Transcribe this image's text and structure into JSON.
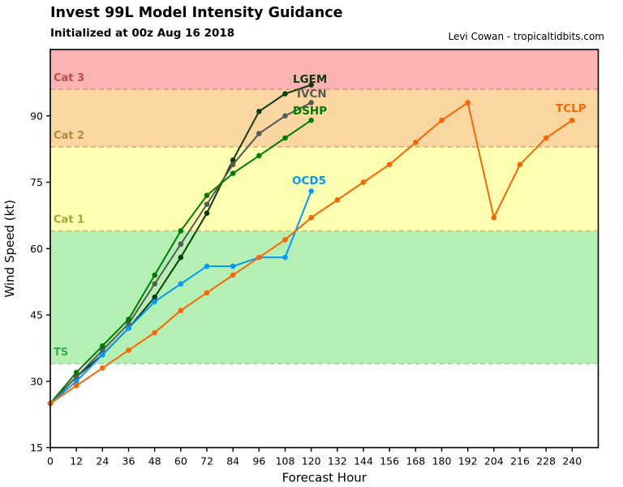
{
  "header": {
    "title": "Invest 99L Model Intensity Guidance",
    "subtitle": "Initialized at 00z Aug 16 2018",
    "credit": "Levi Cowan - tropicaltidbits.com"
  },
  "chart_data": {
    "type": "line",
    "title": "Invest 99L Model Intensity Guidance",
    "subtitle": "Initialized at 00z Aug 16 2018",
    "xlabel": "Forecast Hour",
    "ylabel": "Wind Speed (kt)",
    "xlim": [
      0,
      252
    ],
    "ylim": [
      15,
      105
    ],
    "xticks": [
      0,
      12,
      24,
      36,
      48,
      60,
      72,
      84,
      96,
      108,
      120,
      132,
      144,
      156,
      168,
      180,
      192,
      204,
      216,
      228,
      240
    ],
    "yticks": [
      15,
      30,
      45,
      60,
      75,
      90
    ],
    "grid": false,
    "legend_position": "inline-labels",
    "bands": [
      {
        "label": "",
        "from": 15,
        "to": 34,
        "color": "#ffffff",
        "dash_color": null,
        "label_color": null
      },
      {
        "label": "TS",
        "from": 34,
        "to": 64,
        "color": "#b4f0b4",
        "dash_color": "#8dd98d",
        "label_color": "#3fae47"
      },
      {
        "label": "Cat 1",
        "from": 64,
        "to": 83,
        "color": "#ffffb2",
        "dash_color": "#c6c167",
        "label_color": "#a8a639"
      },
      {
        "label": "Cat 2",
        "from": 83,
        "to": 96,
        "color": "#fad7a0",
        "dash_color": "#d2ab66",
        "label_color": "#b08d3f"
      },
      {
        "label": "Cat 3",
        "from": 96,
        "to": 105,
        "color": "#fbb3b3",
        "dash_color": "#e58f8f",
        "label_color": "#c14b4b"
      }
    ],
    "series": [
      {
        "name": "LGEM",
        "color": "#0d3b0d",
        "x": [
          0,
          12,
          24,
          36,
          48,
          60,
          72,
          84,
          96,
          108,
          120
        ],
        "values": [
          25,
          31,
          36,
          42,
          49,
          58,
          68,
          80,
          91,
          95,
          97
        ],
        "label_x": 361,
        "label_y": 97
      },
      {
        "name": "IVCN",
        "color": "#595959",
        "x": [
          0,
          12,
          24,
          36,
          48,
          60,
          72,
          84,
          96,
          108,
          120
        ],
        "values": [
          25,
          31,
          37,
          43,
          52,
          61,
          70,
          79,
          86,
          90,
          93
        ],
        "label_x": 366,
        "label_y": 115
      },
      {
        "name": "DSHP",
        "color": "#007c00",
        "x": [
          0,
          12,
          24,
          36,
          48,
          60,
          72,
          84,
          96,
          108,
          120
        ],
        "values": [
          25,
          32,
          38,
          44,
          54,
          64,
          72,
          77,
          81,
          85,
          89
        ],
        "label_x": 361,
        "label_y": 136
      },
      {
        "name": "OCD5",
        "color": "#0099ff",
        "x": [
          0,
          12,
          24,
          36,
          48,
          60,
          72,
          84,
          96,
          108,
          120
        ],
        "values": [
          25,
          30,
          36,
          42,
          48,
          52,
          56,
          56,
          58,
          58,
          73
        ],
        "label_x": 360,
        "label_y": 222
      },
      {
        "name": "TCLP",
        "color": "#ff6400",
        "x": [
          0,
          12,
          24,
          36,
          48,
          60,
          72,
          84,
          96,
          108,
          120,
          132,
          144,
          156,
          168,
          180,
          192,
          204,
          216,
          228,
          240
        ],
        "values": [
          25,
          29,
          33,
          37,
          41,
          46,
          50,
          54,
          58,
          62,
          67,
          71,
          75,
          79,
          84,
          89,
          93,
          67,
          79,
          85,
          89
        ],
        "label_x": 685,
        "label_y": 133
      }
    ]
  }
}
